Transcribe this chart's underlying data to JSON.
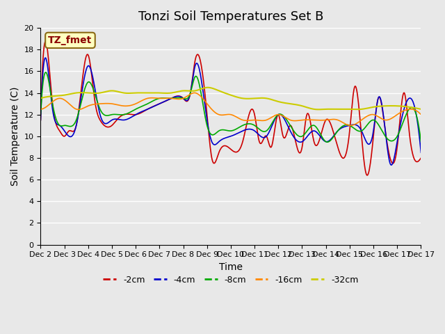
{
  "title": "Tonzi Soil Temperatures Set B",
  "xlabel": "Time",
  "ylabel": "Soil Temperature (C)",
  "annotation_text": "TZ_fmet",
  "annotation_color": "#8B0000",
  "annotation_bg": "#FFFFC0",
  "annotation_border": "#8B6914",
  "ylim": [
    0,
    20
  ],
  "yticks": [
    0,
    2,
    4,
    6,
    8,
    10,
    12,
    14,
    16,
    18,
    20
  ],
  "background_color": "#E8E8E8",
  "plot_bg": "#E8E8E8",
  "grid_color": "#FFFFFF",
  "line_colors": {
    "-2cm": "#CC0000",
    "-4cm": "#0000CC",
    "-8cm": "#00AA00",
    "-16cm": "#FF8800",
    "-32cm": "#CCCC00"
  },
  "legend_labels": [
    "-2cm",
    "-4cm",
    "-8cm",
    "-16cm",
    "-32cm"
  ],
  "x_tick_labels": [
    "Dec 2",
    "Dec 3",
    "Dec 4",
    "Dec 5",
    "Dec 6",
    "Dec 7",
    "Dec 8",
    "Dec 9",
    "Dec 10",
    "Dec 11",
    "Dec 12",
    "Dec 13",
    "Dec 14",
    "Dec 15",
    "Dec 16",
    "Dec 17"
  ],
  "n_days": 16,
  "title_fontsize": 13,
  "axis_label_fontsize": 10,
  "tick_fontsize": 8
}
